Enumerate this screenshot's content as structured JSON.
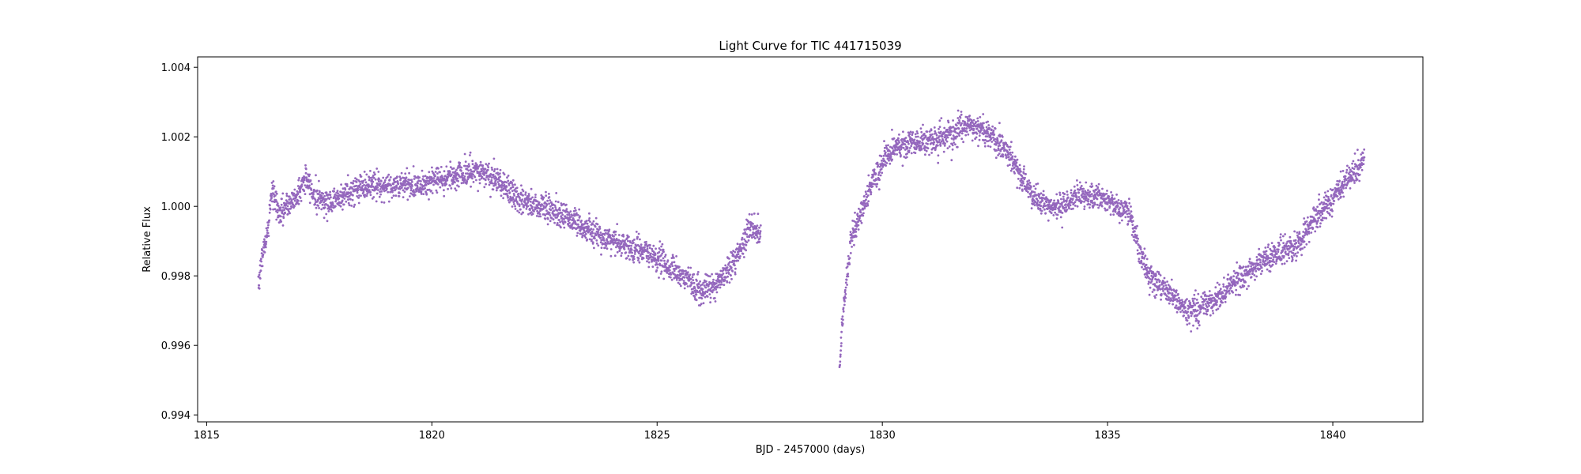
{
  "chart_data": {
    "type": "scatter",
    "title": "Light Curve for TIC 441715039",
    "xlabel": "BJD - 2457000 (days)",
    "ylabel": "Relative Flux",
    "xlim": [
      1814.8,
      1842.0
    ],
    "ylim": [
      0.9938,
      1.0043
    ],
    "xticks": [
      1815,
      1820,
      1825,
      1830,
      1835,
      1840
    ],
    "xtick_labels": [
      "1815",
      "1820",
      "1825",
      "1830",
      "1835",
      "1840"
    ],
    "yticks": [
      0.994,
      0.996,
      0.998,
      1.0,
      1.002,
      1.004
    ],
    "ytick_labels": [
      "0.994",
      "0.996",
      "0.998",
      "1.000",
      "1.002",
      "1.004"
    ],
    "grid": false,
    "legend": "none",
    "marker_color": "#9467bd",
    "series": [
      {
        "segments": [
          {
            "x": [
              1816.15,
              1816.25,
              1816.35,
              1816.45,
              1816.6,
              1816.8,
              1817.0,
              1817.2,
              1817.4,
              1817.7,
              1818.0,
              1818.5,
              1819.0,
              1819.5,
              1820.0,
              1820.5,
              1821.0,
              1821.3,
              1821.6,
              1822.0,
              1822.5,
              1823.0,
              1823.5,
              1824.0,
              1824.5,
              1825.0,
              1825.5,
              1825.8,
              1826.0,
              1826.3,
              1826.6,
              1826.9,
              1827.1,
              1827.3
            ],
            "y": [
              0.9978,
              0.9987,
              0.9992,
              1.0005,
              0.9998,
              1.0,
              1.0003,
              1.0008,
              1.0003,
              1.0001,
              1.0003,
              1.0006,
              1.0006,
              1.0006,
              1.0007,
              1.0009,
              1.001,
              1.0009,
              1.0006,
              1.0001,
              1.0,
              0.9997,
              0.9993,
              0.999,
              0.9988,
              0.9985,
              0.998,
              0.9978,
              0.9976,
              0.9977,
              0.9982,
              0.9989,
              0.9995,
              0.9992
            ]
          },
          {
            "x": [
              1829.05,
              1829.1,
              1829.2,
              1829.3,
              1829.5,
              1829.7,
              1829.9,
              1830.1,
              1830.3,
              1830.6,
              1831.0,
              1831.5,
              1832.0,
              1832.4,
              1832.8,
              1833.1,
              1833.4,
              1833.7,
              1834.0,
              1834.3,
              1834.6,
              1834.9,
              1835.2,
              1835.5,
              1835.7,
              1835.9,
              1836.2,
              1836.5,
              1836.8,
              1837.1,
              1837.5,
              1838.0,
              1838.5,
              1839.0,
              1839.3,
              1839.6,
              1840.0,
              1840.3,
              1840.6,
              1840.7
            ],
            "y": [
              0.9951,
              0.9965,
              0.9978,
              0.999,
              0.9997,
              1.0005,
              1.001,
              1.0014,
              1.0017,
              1.0018,
              1.0019,
              1.0021,
              1.0023,
              1.0021,
              1.0015,
              1.0008,
              1.0002,
              1.0,
              1.0,
              1.0003,
              1.0003,
              1.0002,
              1.0,
              0.9998,
              0.9987,
              0.998,
              0.9977,
              0.9973,
              0.997,
              0.9971,
              0.9974,
              0.998,
              0.9985,
              0.9988,
              0.999,
              0.9996,
              1.0002,
              1.0008,
              1.0012,
              1.0015
            ]
          }
        ]
      }
    ]
  }
}
